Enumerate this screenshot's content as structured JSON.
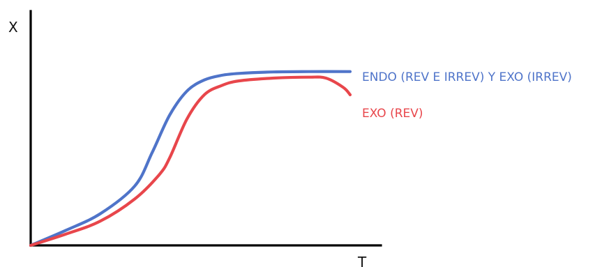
{
  "chart_data": {
    "type": "line",
    "xlabel": "T",
    "ylabel": "X",
    "xlim": [
      0,
      10
    ],
    "ylim": [
      0,
      1
    ],
    "grid": false,
    "series": [
      {
        "name": "ENDO (REV E IRREV) Y EXO (IRREV)",
        "color": "#4f74c9",
        "x": [
          0,
          1,
          2,
          3,
          3.5,
          4,
          4.5,
          5,
          5.5,
          6,
          7,
          8,
          9.2
        ],
        "y": [
          0,
          0.08,
          0.17,
          0.32,
          0.5,
          0.7,
          0.83,
          0.89,
          0.915,
          0.925,
          0.933,
          0.935,
          0.935
        ]
      },
      {
        "name": "EXO (REV)",
        "color": "#e8464b",
        "x": [
          0,
          1,
          2,
          3,
          3.7,
          4,
          4.5,
          5,
          5.5,
          6,
          7,
          8,
          8.5,
          9,
          9.2
        ],
        "y": [
          0,
          0.06,
          0.13,
          0.25,
          0.38,
          0.47,
          0.68,
          0.81,
          0.86,
          0.885,
          0.9,
          0.905,
          0.9,
          0.85,
          0.81
        ]
      }
    ]
  }
}
